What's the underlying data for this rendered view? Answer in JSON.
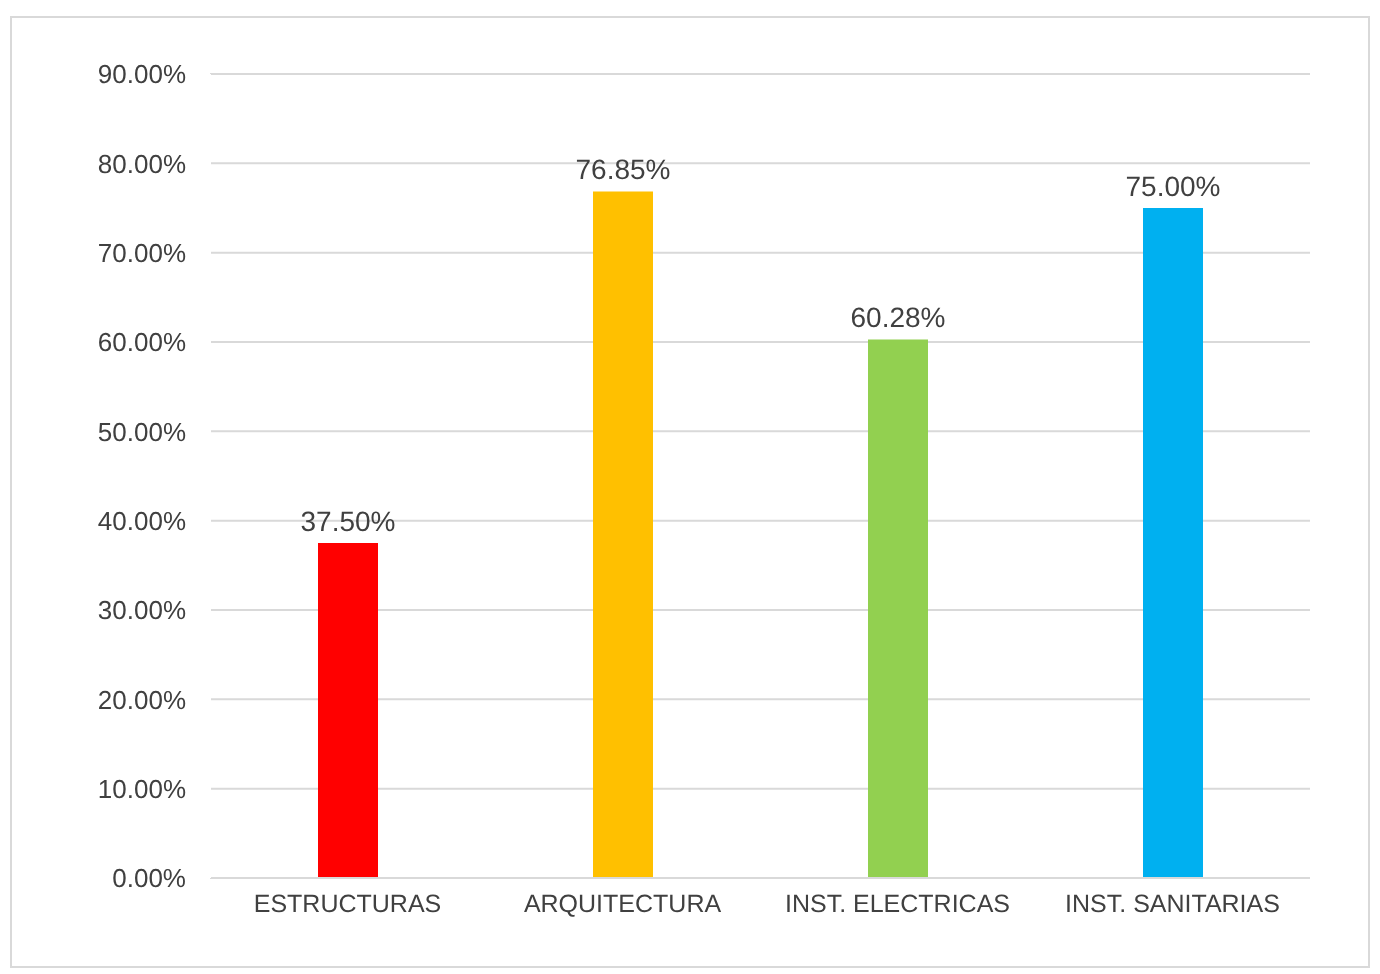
{
  "chart_data": {
    "type": "bar",
    "categories": [
      "ESTRUCTURAS",
      "ARQUITECTURA",
      "INST. ELECTRICAS",
      "INST. SANITARIAS"
    ],
    "values": [
      37.5,
      76.85,
      60.28,
      75
    ],
    "colors": [
      "#ff0000",
      "#ffc000",
      "#92d050",
      "#00b0f0"
    ],
    "value_labels": [
      "37.50%",
      "76.85%",
      "60.28%",
      "75.00%"
    ],
    "ylim": [
      0,
      90
    ],
    "yticks": [
      {
        "value": 0,
        "label": "0.00%"
      },
      {
        "value": 10,
        "label": "10.00%"
      },
      {
        "value": 20,
        "label": "20.00%"
      },
      {
        "value": 30,
        "label": "30.00%"
      },
      {
        "value": 40,
        "label": "40.00%"
      },
      {
        "value": 50,
        "label": "50.00%"
      },
      {
        "value": 60,
        "label": "60.00%"
      },
      {
        "value": 70,
        "label": "70.00%"
      },
      {
        "value": 80,
        "label": "80.00%"
      },
      {
        "value": 90,
        "label": "90.00%"
      }
    ],
    "grid": "y",
    "legend": false
  }
}
